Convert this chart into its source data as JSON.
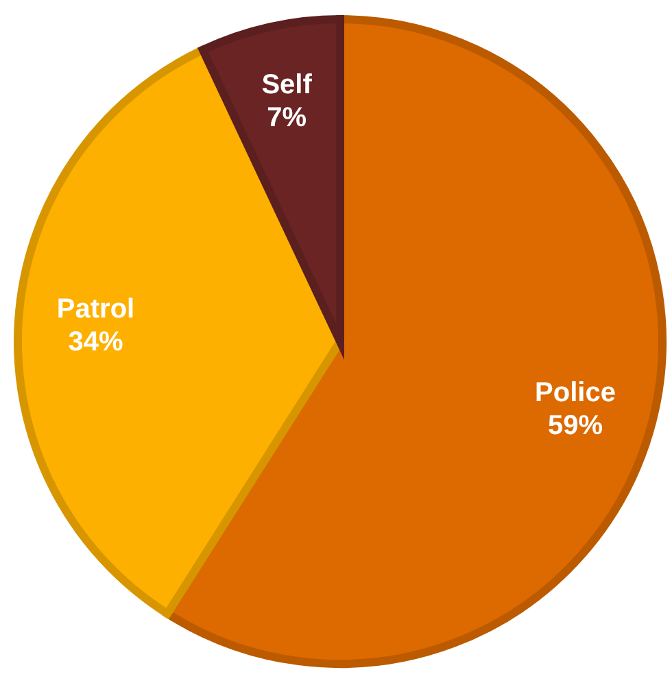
{
  "chart_data": {
    "type": "pie",
    "categories": [
      "Police",
      "Patrol",
      "Self"
    ],
    "values": [
      59,
      34,
      7
    ],
    "colors": [
      "#dd6a00",
      "#fdb000",
      "#6b2424"
    ],
    "value_labels": [
      "59%",
      "34%",
      "7%"
    ],
    "legend": false
  }
}
